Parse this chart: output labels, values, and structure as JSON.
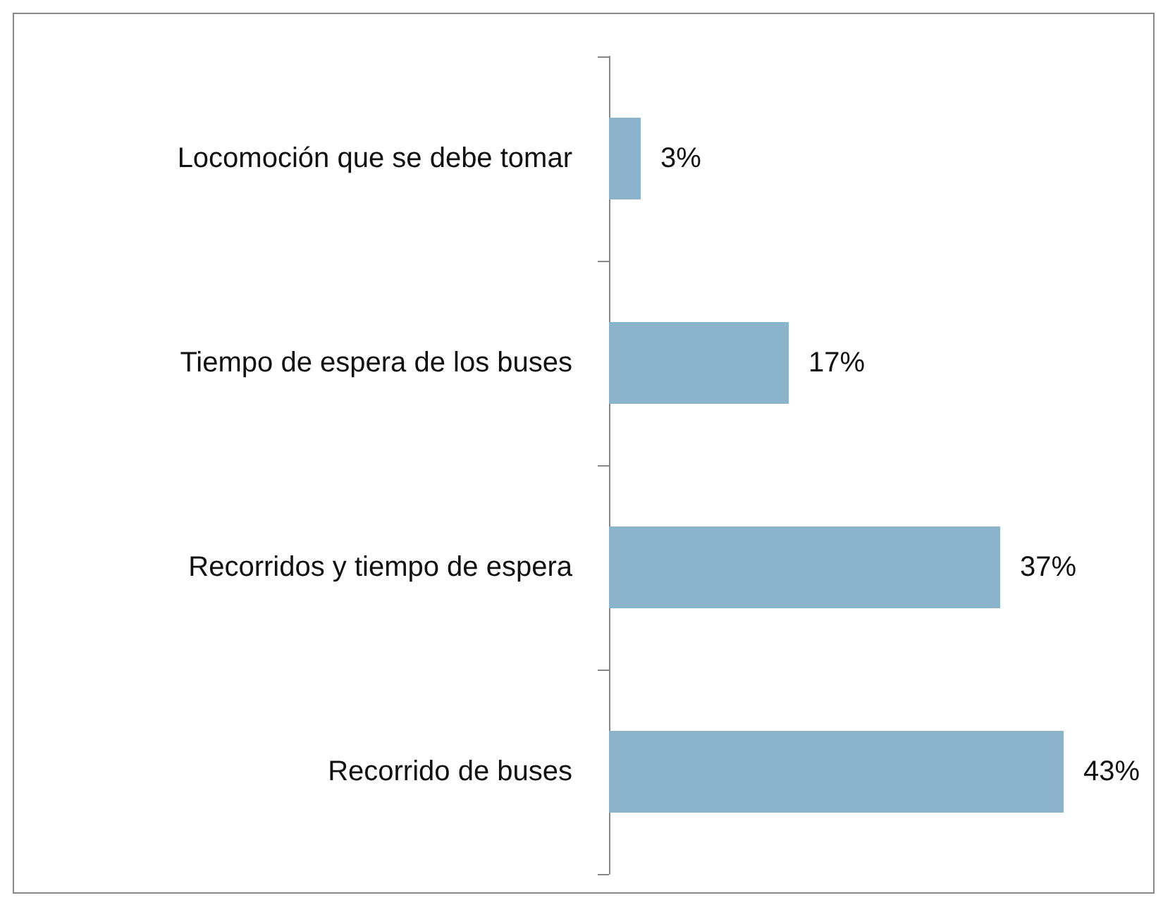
{
  "chart_data": {
    "type": "bar",
    "orientation": "horizontal",
    "categories": [
      "Locomoción que se debe tomar",
      "Tiempo de espera de los buses",
      "Recorridos y tiempo de espera",
      "Recorrido de buses"
    ],
    "values": [
      3,
      17,
      37,
      43
    ],
    "color": "#8bb4cc",
    "value_labels": [
      "3%",
      "17%",
      "37%",
      "43%"
    ]
  }
}
